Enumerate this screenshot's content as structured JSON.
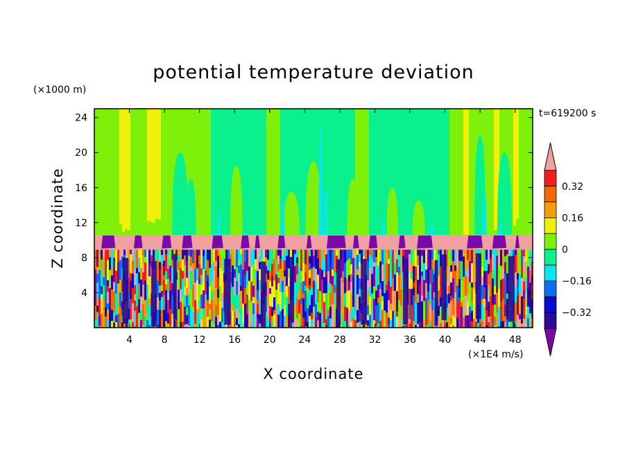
{
  "chart_data": {
    "type": "heatmap",
    "title": "potential temperature deviation",
    "xlabel": "X coordinate",
    "ylabel": "Z coordinate",
    "x_units": "(×1E4 m/s)",
    "y_units": "(×1000 m)",
    "time_label": "t=619200 s",
    "xlim": [
      0,
      50
    ],
    "ylim": [
      0,
      25
    ],
    "x_ticks": [
      4,
      8,
      12,
      16,
      20,
      24,
      28,
      32,
      36,
      40,
      44,
      48
    ],
    "y_ticks": [
      4,
      8,
      12,
      16,
      20,
      24
    ],
    "colorbar": {
      "levels": [
        -0.4,
        -0.32,
        -0.24,
        -0.16,
        -0.08,
        0,
        0.08,
        0.16,
        0.24,
        0.32,
        0.4
      ],
      "tick_labels": [
        "0.32",
        "0.16",
        "0",
        "−0.16",
        "−0.32"
      ],
      "tick_values": [
        0.32,
        0.16,
        0,
        -0.16,
        -0.32
      ],
      "colors": [
        "#7a0aa8",
        "#2a0a96",
        "#0a0ad2",
        "#0a6ef0",
        "#0ae6f0",
        "#0af08c",
        "#7ef00a",
        "#f0f00a",
        "#f0a00a",
        "#f06a0a",
        "#f01e1e",
        "#f0a0a0"
      ],
      "extend": "both"
    },
    "layers": {
      "upper": {
        "z_range": [
          10.5,
          25
        ],
        "description_values": "mostly 0 to 0.08 with columns of 0.08-0.16 and -0.08-0"
      },
      "band": {
        "z_range": [
          8.8,
          10.6
        ],
        "value": "above 0.4 with below -0.4 cells"
      },
      "lower": {
        "z_range": [
          0,
          8.8
        ],
        "values": "mixed -0.4 to 0.4"
      }
    }
  },
  "colors": {
    "purple": "#7a0aa8",
    "navy": "#2a0a96",
    "blue": "#0a0ad2",
    "azure": "#0a6ef0",
    "cyan": "#0ae6f0",
    "spring": "#0af08c",
    "lime": "#7ef00a",
    "yellow": "#f0f00a",
    "orange": "#f0a00a",
    "redorange": "#f06a0a",
    "red": "#f01e1e",
    "pink": "#f0a0a0"
  }
}
